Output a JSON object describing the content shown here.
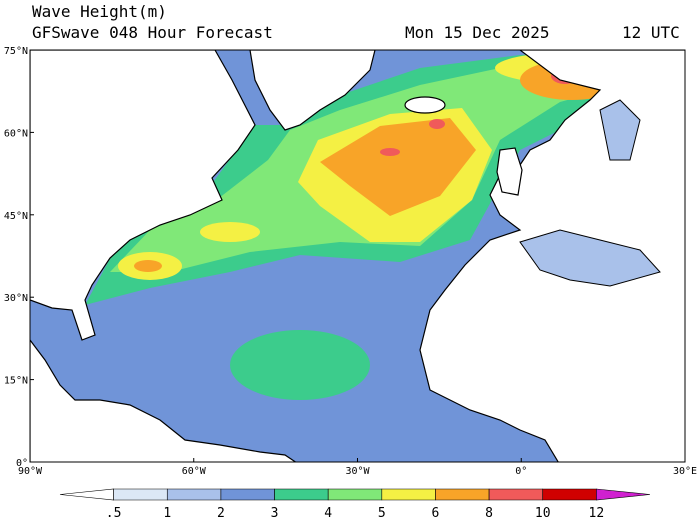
{
  "header": {
    "title": "Wave Height(m)",
    "subtitle": "GFSwave 048 Hour Forecast",
    "date": "Mon 15 Dec 2025",
    "time": "12 UTC"
  },
  "map": {
    "lat_labels": [
      "75°N",
      "60°N",
      "45°N",
      "30°N",
      "15°N",
      "0°"
    ],
    "lon_labels": [
      "90°W",
      "60°W",
      "30°W",
      "0°",
      "30°E"
    ]
  },
  "colorbar": {
    "labels": [
      ".5",
      "1",
      "2",
      "3",
      "4",
      "5",
      "6",
      "8",
      "10",
      "12"
    ],
    "colors": [
      "#ffffff",
      "#dce8f6",
      "#a9c1ea",
      "#7094d8",
      "#3ccc8c",
      "#80e878",
      "#f4f044",
      "#f8a428",
      "#f05a5a",
      "#d00000",
      "#d020d0"
    ]
  }
}
